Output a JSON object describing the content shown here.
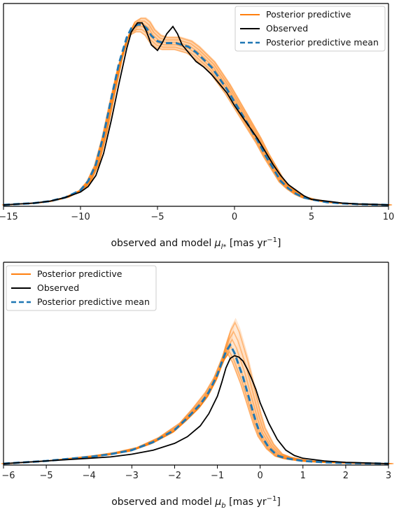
{
  "chart_data": [
    {
      "type": "line",
      "xlabel_text": "observed and model ",
      "xlabel_symbol": "μ",
      "xlabel_sub": "l*",
      "xlabel_unit": " [mas yr",
      "xlabel_sup": "−1",
      "xlabel_close": "]",
      "xlim": [
        -15,
        10
      ],
      "ylim": [
        0,
        1
      ],
      "x_ticks": [
        -15,
        -10,
        -5,
        0,
        5,
        10
      ],
      "x_tick_labels": [
        "−15",
        "−10",
        "−5",
        "0",
        "5",
        "10"
      ],
      "y_ticks_visible": false,
      "grid": false,
      "legend_position": "top-right",
      "legend": [
        "Posterior predictive",
        "Observed",
        "Posterior predictive mean"
      ],
      "colors": {
        "posterior": "#ff7f0e",
        "observed": "#000000",
        "mean": "#1f77b4"
      },
      "series": [
        {
          "name": "Observed",
          "x": [
            -15,
            -13,
            -12,
            -11,
            -10,
            -9.5,
            -9,
            -8.5,
            -8,
            -7.5,
            -7,
            -6.7,
            -6.3,
            -6,
            -5.7,
            -5.4,
            -5,
            -4.7,
            -4.4,
            -4,
            -3.7,
            -3.4,
            -3,
            -2.5,
            -2,
            -1.5,
            -1,
            -0.5,
            0,
            0.5,
            1,
            1.5,
            2,
            2.5,
            3,
            3.5,
            4,
            4.5,
            5,
            6,
            7,
            8,
            9,
            10
          ],
          "values": [
            0.0,
            0.01,
            0.02,
            0.04,
            0.07,
            0.1,
            0.16,
            0.28,
            0.46,
            0.66,
            0.85,
            0.94,
            0.99,
            0.99,
            0.94,
            0.87,
            0.84,
            0.88,
            0.93,
            0.97,
            0.93,
            0.87,
            0.83,
            0.78,
            0.75,
            0.71,
            0.66,
            0.61,
            0.54,
            0.48,
            0.42,
            0.36,
            0.29,
            0.22,
            0.16,
            0.11,
            0.08,
            0.05,
            0.03,
            0.02,
            0.01,
            0.005,
            0.003,
            0.0
          ]
        },
        {
          "name": "Posterior predictive mean",
          "x": [
            -15,
            -13,
            -12,
            -11,
            -10,
            -9.5,
            -9,
            -8.5,
            -8,
            -7.5,
            -7,
            -6.7,
            -6.3,
            -6,
            -5.7,
            -5.4,
            -5,
            -4.6,
            -4.2,
            -3.8,
            -3.4,
            -3,
            -2.5,
            -2,
            -1.5,
            -1,
            -0.5,
            0,
            0.5,
            1,
            1.5,
            2,
            2.5,
            3,
            3.5,
            4,
            4.5,
            5,
            6,
            7,
            8,
            9,
            10
          ],
          "values": [
            0.0,
            0.01,
            0.02,
            0.04,
            0.08,
            0.13,
            0.22,
            0.38,
            0.58,
            0.77,
            0.91,
            0.96,
            0.98,
            0.98,
            0.96,
            0.92,
            0.89,
            0.88,
            0.88,
            0.88,
            0.87,
            0.86,
            0.83,
            0.79,
            0.75,
            0.69,
            0.63,
            0.56,
            0.49,
            0.42,
            0.35,
            0.27,
            0.2,
            0.13,
            0.09,
            0.06,
            0.04,
            0.03,
            0.015,
            0.008,
            0.004,
            0.002,
            0.0
          ]
        }
      ]
    },
    {
      "type": "line",
      "xlabel_text": "observed and model ",
      "xlabel_symbol": "μ",
      "xlabel_sub": "b",
      "xlabel_unit": " [mas yr",
      "xlabel_sup": "−1",
      "xlabel_close": "]",
      "xlim": [
        -6,
        3
      ],
      "ylim": [
        0,
        1
      ],
      "x_ticks": [
        -6,
        -5,
        -4,
        -3,
        -2,
        -1,
        0,
        1,
        2,
        3
      ],
      "x_tick_labels": [
        "−6",
        "−5",
        "−4",
        "−3",
        "−2",
        "−1",
        "0",
        "1",
        "2",
        "3"
      ],
      "y_ticks_visible": false,
      "grid": false,
      "legend_position": "top-left",
      "legend": [
        "Posterior predictive",
        "Observed",
        "Posterior predictive mean"
      ],
      "colors": {
        "posterior": "#ff7f0e",
        "observed": "#000000",
        "mean": "#1f77b4"
      },
      "series": [
        {
          "name": "Observed",
          "x": [
            -6,
            -5,
            -4,
            -3.5,
            -3,
            -2.5,
            -2,
            -1.7,
            -1.4,
            -1.2,
            -1,
            -0.9,
            -0.8,
            -0.7,
            -0.6,
            -0.5,
            -0.4,
            -0.3,
            -0.2,
            -0.1,
            0,
            0.2,
            0.4,
            0.6,
            0.8,
            1,
            1.5,
            2,
            3
          ],
          "values": [
            0.0,
            0.02,
            0.04,
            0.05,
            0.07,
            0.1,
            0.15,
            0.2,
            0.28,
            0.37,
            0.5,
            0.6,
            0.71,
            0.78,
            0.8,
            0.79,
            0.76,
            0.7,
            0.63,
            0.55,
            0.45,
            0.3,
            0.18,
            0.1,
            0.06,
            0.04,
            0.02,
            0.01,
            0.0
          ]
        },
        {
          "name": "Posterior predictive mean",
          "x": [
            -6,
            -5,
            -4,
            -3.5,
            -3,
            -2.5,
            -2,
            -1.7,
            -1.4,
            -1.2,
            -1,
            -0.9,
            -0.8,
            -0.7,
            -0.6,
            -0.5,
            -0.4,
            -0.3,
            -0.2,
            -0.1,
            0,
            0.2,
            0.4,
            0.6,
            0.8,
            1,
            1.5,
            2,
            3
          ],
          "values": [
            0.0,
            0.02,
            0.05,
            0.07,
            0.1,
            0.16,
            0.25,
            0.34,
            0.44,
            0.53,
            0.66,
            0.75,
            0.83,
            0.88,
            0.82,
            0.73,
            0.64,
            0.53,
            0.42,
            0.31,
            0.22,
            0.12,
            0.06,
            0.04,
            0.03,
            0.02,
            0.01,
            0.005,
            0.0
          ]
        }
      ]
    }
  ]
}
